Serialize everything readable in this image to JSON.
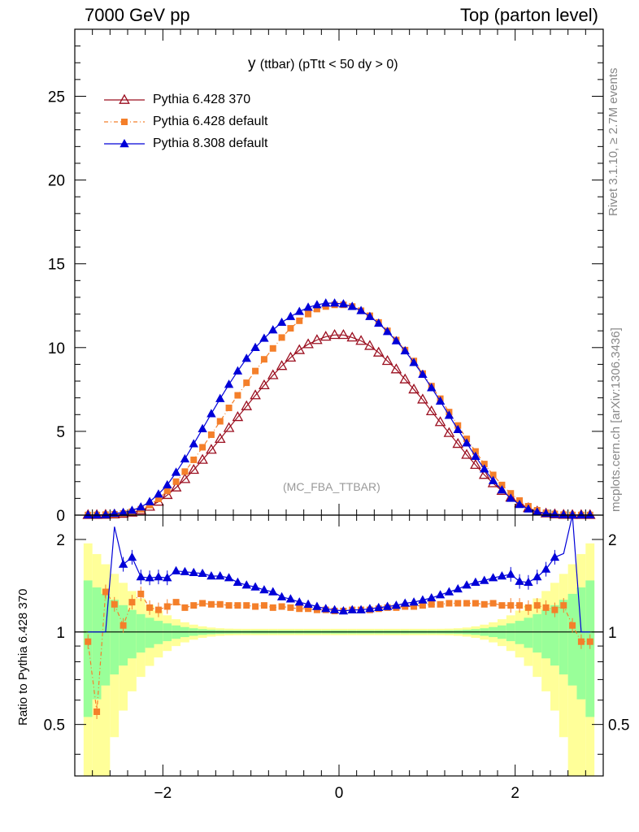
{
  "header": {
    "left_label": "7000 GeV pp",
    "right_label": "Top (parton level)"
  },
  "side_labels": {
    "rivet": "Rivet 3.1.10, ≥ 2.7M events",
    "mcplots": "mcplots.cern.ch [arXiv:1306.3436]"
  },
  "chart_data": [
    {
      "type": "line",
      "title_main": "y",
      "title_rest": "(ttbar) (pTtt < 50 dy > 0)",
      "watermark": "(MC_FBA_TTBAR)",
      "xlim": [
        -3.0,
        3.0
      ],
      "ylim": [
        0,
        29
      ],
      "y_ticks": [
        "0",
        "5",
        "10",
        "15",
        "20",
        "25"
      ],
      "x": [
        -2.85,
        -2.75,
        -2.65,
        -2.55,
        -2.45,
        -2.35,
        -2.25,
        -2.15,
        -2.05,
        -1.95,
        -1.85,
        -1.75,
        -1.65,
        -1.55,
        -1.45,
        -1.35,
        -1.25,
        -1.15,
        -1.05,
        -0.95,
        -0.85,
        -0.75,
        -0.65,
        -0.55,
        -0.45,
        -0.35,
        -0.25,
        -0.15,
        -0.05,
        0.05,
        0.15,
        0.25,
        0.35,
        0.45,
        0.55,
        0.65,
        0.75,
        0.85,
        0.95,
        1.05,
        1.15,
        1.25,
        1.35,
        1.45,
        1.55,
        1.65,
        1.75,
        1.85,
        1.95,
        2.05,
        2.15,
        2.25,
        2.35,
        2.45,
        2.55,
        2.65,
        2.75,
        2.85
      ],
      "series": [
        {
          "name": "Pythia 6.428 370",
          "color": "#9b0e1f",
          "marker": "open-triangle",
          "values": [
            0.01,
            0.01,
            0.02,
            0.04,
            0.08,
            0.15,
            0.28,
            0.5,
            0.8,
            1.2,
            1.65,
            2.15,
            2.7,
            3.3,
            3.9,
            4.55,
            5.2,
            5.85,
            6.5,
            7.15,
            7.75,
            8.35,
            8.9,
            9.4,
            9.85,
            10.2,
            10.45,
            10.65,
            10.75,
            10.75,
            10.6,
            10.4,
            10.1,
            9.7,
            9.2,
            8.7,
            8.1,
            7.5,
            6.9,
            6.2,
            5.55,
            4.9,
            4.25,
            3.6,
            3.0,
            2.4,
            1.9,
            1.45,
            1.05,
            0.7,
            0.42,
            0.22,
            0.1,
            0.05,
            0.02,
            0.01,
            0.01,
            0.01
          ]
        },
        {
          "name": "Pythia 6.428 default",
          "color": "#f47f2a",
          "marker": "filled-square",
          "values": [
            0.01,
            0.01,
            0.03,
            0.05,
            0.1,
            0.2,
            0.35,
            0.6,
            0.97,
            1.45,
            2.0,
            2.6,
            3.3,
            4.05,
            4.8,
            5.6,
            6.4,
            7.15,
            7.9,
            8.6,
            9.3,
            9.95,
            10.6,
            11.15,
            11.6,
            12.0,
            12.3,
            12.45,
            12.55,
            12.55,
            12.45,
            12.2,
            11.9,
            11.5,
            11.0,
            10.45,
            9.85,
            9.2,
            8.45,
            7.7,
            6.95,
            6.15,
            5.35,
            4.55,
            3.8,
            3.05,
            2.4,
            1.8,
            1.3,
            0.87,
            0.53,
            0.29,
            0.14,
            0.07,
            0.03,
            0.01,
            0.01,
            0.01
          ]
        },
        {
          "name": "Pythia 8.308 default",
          "color": "#0000d8",
          "marker": "filled-triangle",
          "values": [
            0.01,
            0.01,
            0.02,
            0.1,
            0.15,
            0.28,
            0.48,
            0.8,
            1.25,
            1.8,
            2.55,
            3.35,
            4.25,
            5.15,
            6.05,
            6.95,
            7.8,
            8.6,
            9.35,
            10.0,
            10.55,
            11.05,
            11.5,
            11.85,
            12.15,
            12.4,
            12.55,
            12.65,
            12.65,
            12.6,
            12.45,
            12.2,
            11.85,
            11.45,
            10.95,
            10.4,
            9.8,
            9.1,
            8.4,
            7.6,
            6.8,
            5.95,
            5.1,
            4.3,
            3.5,
            2.75,
            2.05,
            1.5,
            1.0,
            0.63,
            0.36,
            0.18,
            0.1,
            0.05,
            0.02,
            0.01,
            0.01,
            0.01
          ]
        }
      ]
    },
    {
      "type": "line",
      "ylabel": "Ratio to Pythia 6.428 370",
      "xlim": [
        -3.0,
        3.0
      ],
      "ylog": true,
      "ylim": [
        0.34,
        2.4
      ],
      "x_ticks": [
        "−2",
        "0",
        "2"
      ],
      "y_ticks": [
        "0.5",
        "1",
        "2"
      ],
      "x": [
        -2.85,
        -2.75,
        -2.65,
        -2.55,
        -2.45,
        -2.35,
        -2.25,
        -2.15,
        -2.05,
        -1.95,
        -1.85,
        -1.75,
        -1.65,
        -1.55,
        -1.45,
        -1.35,
        -1.25,
        -1.15,
        -1.05,
        -0.95,
        -0.85,
        -0.75,
        -0.65,
        -0.55,
        -0.45,
        -0.35,
        -0.25,
        -0.15,
        -0.05,
        0.05,
        0.15,
        0.25,
        0.35,
        0.45,
        0.55,
        0.65,
        0.75,
        0.85,
        0.95,
        1.05,
        1.15,
        1.25,
        1.35,
        1.45,
        1.55,
        1.65,
        1.75,
        1.85,
        1.95,
        2.05,
        2.15,
        2.25,
        2.35,
        2.45,
        2.55,
        2.65,
        2.75,
        2.85
      ],
      "series": [
        {
          "name": "Pythia 6.428 default",
          "color": "#f47f2a",
          "values": [
            0.93,
            0.55,
            1.35,
            1.23,
            1.05,
            1.25,
            1.33,
            1.2,
            1.18,
            1.21,
            1.25,
            1.2,
            1.22,
            1.24,
            1.23,
            1.23,
            1.22,
            1.22,
            1.22,
            1.21,
            1.22,
            1.2,
            1.21,
            1.2,
            1.19,
            1.19,
            1.18,
            1.18,
            1.17,
            1.17,
            1.18,
            1.18,
            1.18,
            1.19,
            1.2,
            1.2,
            1.21,
            1.21,
            1.22,
            1.23,
            1.23,
            1.24,
            1.24,
            1.24,
            1.24,
            1.23,
            1.24,
            1.22,
            1.22,
            1.22,
            1.2,
            1.22,
            1.2,
            1.18,
            1.22,
            1.05,
            0.93,
            0.93
          ]
        },
        {
          "name": "Pythia 8.308 default",
          "color": "#0000d8",
          "values": [
            1.0,
            1.0,
            1.0,
            2.2,
            1.66,
            1.75,
            1.51,
            1.5,
            1.51,
            1.5,
            1.58,
            1.57,
            1.56,
            1.55,
            1.52,
            1.52,
            1.5,
            1.45,
            1.42,
            1.4,
            1.37,
            1.35,
            1.3,
            1.28,
            1.25,
            1.23,
            1.21,
            1.19,
            1.18,
            1.17,
            1.18,
            1.18,
            1.19,
            1.2,
            1.21,
            1.22,
            1.24,
            1.25,
            1.27,
            1.29,
            1.32,
            1.35,
            1.38,
            1.42,
            1.45,
            1.47,
            1.5,
            1.52,
            1.54,
            1.46,
            1.45,
            1.51,
            1.6,
            1.75,
            1.8,
            2.4,
            1.0,
            1.0
          ]
        }
      ]
    }
  ]
}
